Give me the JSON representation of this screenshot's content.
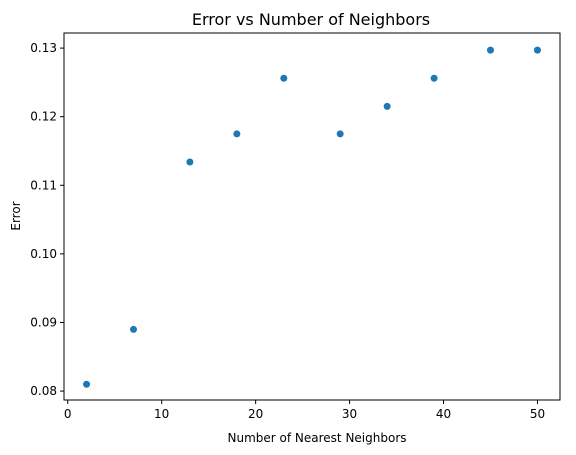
{
  "chart_data": {
    "type": "scatter",
    "title": "Error vs Number of Neighbors",
    "xlabel": "Number of Nearest Neighbors",
    "ylabel": "Error",
    "xlim": [
      -0.4,
      52.4
    ],
    "ylim": [
      0.0787,
      0.1322
    ],
    "xticks": [
      0,
      10,
      20,
      30,
      40,
      50
    ],
    "yticks": [
      0.08,
      0.09,
      0.1,
      0.11,
      0.12,
      0.13
    ],
    "ytick_labels": [
      "0.08",
      "0.09",
      "0.10",
      "0.11",
      "0.12",
      "0.13"
    ],
    "grid": false,
    "legend": false,
    "marker_color": "#1f77b4",
    "series": [
      {
        "x": [
          2,
          7,
          13,
          18,
          23,
          29,
          34,
          39,
          45,
          50
        ],
        "y": [
          0.081,
          0.089,
          0.1134,
          0.1175,
          0.1256,
          0.1175,
          0.1215,
          0.1256,
          0.1297,
          0.1297
        ]
      }
    ]
  }
}
